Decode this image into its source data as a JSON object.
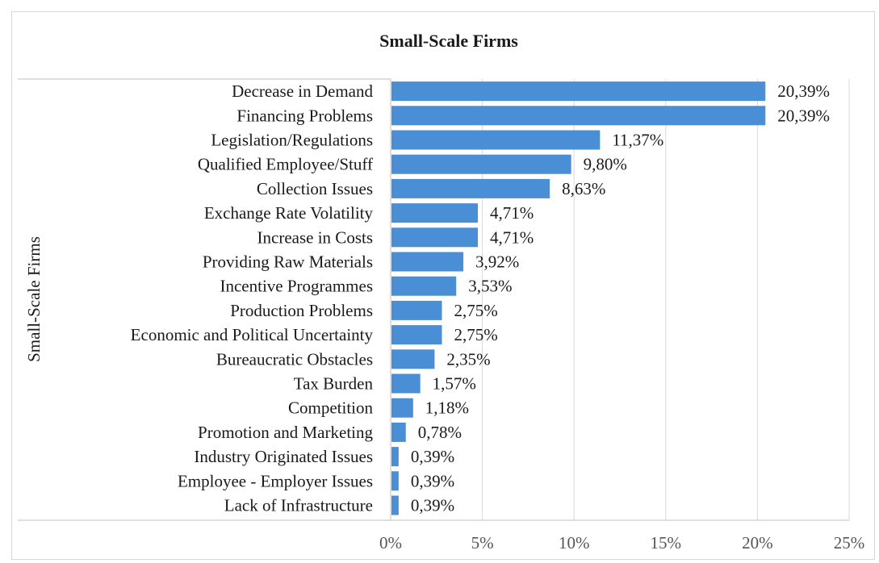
{
  "chart_data": {
    "type": "bar",
    "orientation": "horizontal",
    "title": "Small-Scale Firms",
    "ylabel": "Small-Scale Firms",
    "xlabel": "",
    "xlim": [
      0,
      25
    ],
    "x_ticks": [
      "0%",
      "5%",
      "10%",
      "15%",
      "20%",
      "25%"
    ],
    "grid": "vertical",
    "legend": "none",
    "bar_color": "#4a8fd6",
    "categories": [
      "Decrease in Demand",
      "Financing Problems",
      "Legislation/Regulations",
      "Qualified Employee/Stuff",
      "Collection Issues",
      "Exchange Rate Volatility",
      "Increase in Costs",
      "Providing Raw Materials",
      "Incentive Programmes",
      "Production Problems",
      "Economic and Political Uncertainty",
      "Bureaucratic Obstacles",
      "Tax Burden",
      "Competition",
      "Promotion and Marketing",
      "Industry Originated Issues",
      "Employee - Employer Issues",
      "Lack of Infrastructure"
    ],
    "values": [
      20.39,
      20.39,
      11.37,
      9.8,
      8.63,
      4.71,
      4.71,
      3.92,
      3.53,
      2.75,
      2.75,
      2.35,
      1.57,
      1.18,
      0.78,
      0.39,
      0.39,
      0.39
    ],
    "value_labels": [
      "20,39%",
      "20,39%",
      "11,37%",
      "9,80%",
      "8,63%",
      "4,71%",
      "4,71%",
      "3,92%",
      "3,53%",
      "2,75%",
      "2,75%",
      "2,35%",
      "1,57%",
      "1,18%",
      "0,78%",
      "0,39%",
      "0,39%",
      "0,39%"
    ]
  }
}
